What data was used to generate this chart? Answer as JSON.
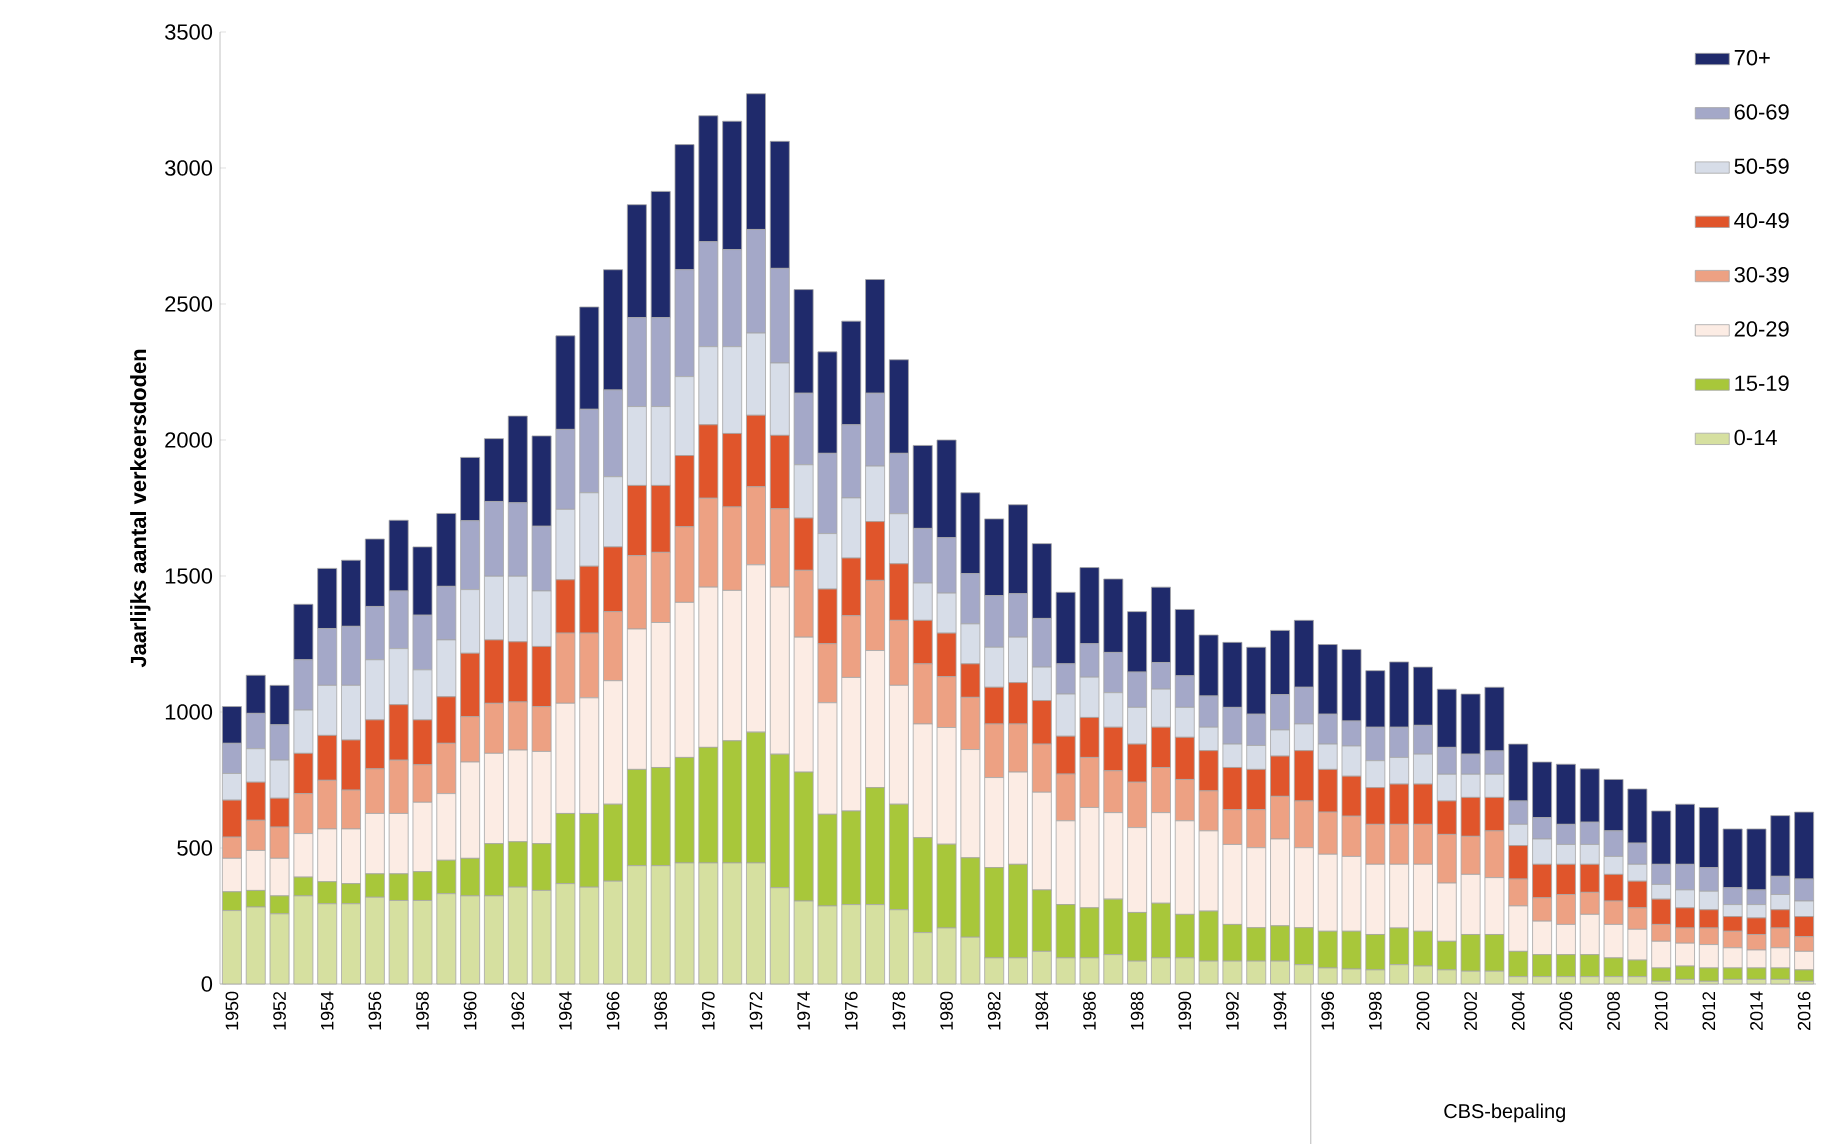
{
  "chart_data": {
    "type": "bar",
    "stacked": true,
    "ylabel": "Jaarlijks aantal verkeersdoden",
    "categories": [
      "1950",
      null,
      "1952",
      null,
      "1954",
      null,
      "1956",
      null,
      "1958",
      null,
      "1960",
      null,
      "1962",
      null,
      "1964",
      null,
      "1966",
      null,
      "1968",
      null,
      "1970",
      null,
      "1972",
      null,
      "1974",
      null,
      "1976",
      null,
      "1978",
      null,
      "1980",
      null,
      "1982",
      null,
      "1984",
      null,
      "1986",
      null,
      "1988",
      null,
      "1990",
      null,
      "1992",
      null,
      "1994",
      null,
      "1996",
      null,
      "1998",
      null,
      "2000",
      null,
      "2002",
      null,
      "2004",
      null,
      "2006",
      null,
      "2008",
      null,
      "2010",
      null,
      "2012",
      null,
      "2014",
      null,
      "2016"
    ],
    "ylim": [
      0,
      3500
    ],
    "yticks": [
      0,
      500,
      1000,
      1500,
      2000,
      2500,
      3000,
      3500
    ],
    "legend": "top right",
    "annotations": [
      "CBS-bepaling"
    ],
    "series": [
      {
        "name": "0-14",
        "color": "#d6e0a0",
        "values": [
          270,
          283,
          258,
          324,
          295,
          295,
          319,
          307,
          307,
          332,
          324,
          324,
          356,
          344,
          369,
          356,
          378,
          435,
          435,
          445,
          445,
          445,
          445,
          354,
          305,
          287,
          292,
          292,
          273,
          189,
          206,
          172,
          96,
          96,
          120,
          96,
          96,
          108,
          84,
          96,
          96,
          84,
          84,
          84,
          84,
          71,
          59,
          55,
          52,
          71,
          66,
          52,
          47,
          47,
          27,
          27,
          27,
          27,
          27,
          27,
          10,
          17,
          10,
          17,
          17,
          17,
          10
        ]
      },
      {
        "name": "15-19",
        "color": "#a8c73a",
        "values": [
          69,
          61,
          66,
          69,
          81,
          74,
          86,
          98,
          106,
          123,
          138,
          192,
          167,
          172,
          258,
          271,
          283,
          354,
          361,
          388,
          425,
          449,
          481,
          491,
          474,
          337,
          344,
          430,
          388,
          349,
          308,
          292,
          332,
          344,
          226,
          196,
          184,
          204,
          179,
          201,
          160,
          184,
          135,
          123,
          130,
          136,
          135,
          139,
          130,
          135,
          128,
          105,
          135,
          135,
          93,
          81,
          81,
          81,
          69,
          61,
          49,
          49,
          49,
          42,
          42,
          42,
          42
        ]
      },
      {
        "name": "20-29",
        "color": "#fcece4",
        "values": [
          123,
          147,
          138,
          160,
          194,
          201,
          222,
          222,
          255,
          245,
          354,
          332,
          337,
          339,
          405,
          425,
          454,
          516,
          533,
          570,
          589,
          553,
          615,
          614,
          496,
          410,
          491,
          504,
          437,
          418,
          429,
          398,
          331,
          339,
          359,
          308,
          369,
          318,
          312,
          333,
          344,
          295,
          294,
          294,
          319,
          294,
          283,
          275,
          258,
          234,
          246,
          214,
          221,
          209,
          167,
          123,
          111,
          148,
          123,
          113,
          98,
          84,
          86,
          74,
          66,
          74,
          68
        ]
      },
      {
        "name": "30-39",
        "color": "#eda183",
        "values": [
          78,
          111,
          115,
          147,
          179,
          143,
          164,
          196,
          138,
          185,
          167,
          184,
          177,
          165,
          258,
          238,
          254,
          270,
          258,
          278,
          327,
          307,
          287,
          288,
          246,
          217,
          227,
          258,
          239,
          221,
          187,
          192,
          197,
          177,
          177,
          172,
          184,
          154,
          167,
          166,
          152,
          147,
          128,
          140,
          157,
          172,
          155,
          148,
          147,
          147,
          147,
          179,
          140,
          172,
          99,
          86,
          110,
          81,
          86,
          79,
          62,
          56,
          61,
          61,
          57,
          73,
          54
        ]
      },
      {
        "name": "40-49",
        "color": "#e0552b",
        "values": [
          136,
          140,
          106,
          148,
          165,
          184,
          180,
          204,
          165,
          171,
          233,
          233,
          221,
          221,
          196,
          246,
          238,
          258,
          246,
          262,
          270,
          270,
          263,
          270,
          192,
          201,
          212,
          216,
          208,
          160,
          160,
          123,
          135,
          152,
          160,
          139,
          147,
          160,
          140,
          148,
          155,
          148,
          155,
          148,
          148,
          185,
          157,
          147,
          135,
          148,
          148,
          123,
          143,
          123,
          123,
          123,
          111,
          103,
          98,
          98,
          93,
          74,
          67,
          54,
          61,
          67,
          74
        ]
      },
      {
        "name": "50-59",
        "color": "#d7dde8",
        "values": [
          98,
          123,
          140,
          159,
          184,
          201,
          221,
          206,
          184,
          209,
          234,
          234,
          241,
          204,
          259,
          270,
          258,
          290,
          290,
          290,
          287,
          319,
          302,
          266,
          196,
          204,
          221,
          204,
          184,
          137,
          147,
          147,
          147,
          167,
          123,
          155,
          148,
          127,
          135,
          140,
          110,
          86,
          86,
          88,
          96,
          98,
          93,
          111,
          99,
          98,
          110,
          98,
          85,
          85,
          78,
          93,
          73,
          73,
          66,
          62,
          54,
          66,
          68,
          44,
          49,
          56,
          57
        ]
      },
      {
        "name": "60-69",
        "color": "#a4a8c8",
        "values": [
          111,
          130,
          130,
          185,
          209,
          217,
          196,
          212,
          201,
          197,
          253,
          275,
          270,
          238,
          294,
          307,
          319,
          327,
          327,
          393,
          386,
          357,
          381,
          348,
          263,
          295,
          269,
          268,
          222,
          201,
          204,
          185,
          190,
          160,
          179,
          111,
          123,
          148,
          130,
          98,
          116,
          115,
          135,
          115,
          130,
          135,
          110,
          92,
          123,
          111,
          106,
          99,
          74,
          86,
          86,
          79,
          74,
          82,
          94,
          78,
          74,
          94,
          87,
          62,
          54,
          67,
          81
        ]
      },
      {
        "name": "70+",
        "color": "#1f2a6b",
        "values": [
          135,
          140,
          145,
          204,
          221,
          243,
          248,
          260,
          251,
          268,
          233,
          231,
          319,
          332,
          344,
          376,
          442,
          415,
          464,
          460,
          463,
          472,
          499,
          467,
          381,
          373,
          381,
          418,
          344,
          305,
          359,
          297,
          282,
          327,
          275,
          263,
          280,
          270,
          222,
          277,
          244,
          224,
          239,
          246,
          236,
          246,
          256,
          263,
          208,
          240,
          214,
          214,
          221,
          234,
          209,
          204,
          221,
          196,
          189,
          199,
          196,
          221,
          221,
          216,
          224,
          223,
          246
        ]
      }
    ]
  }
}
